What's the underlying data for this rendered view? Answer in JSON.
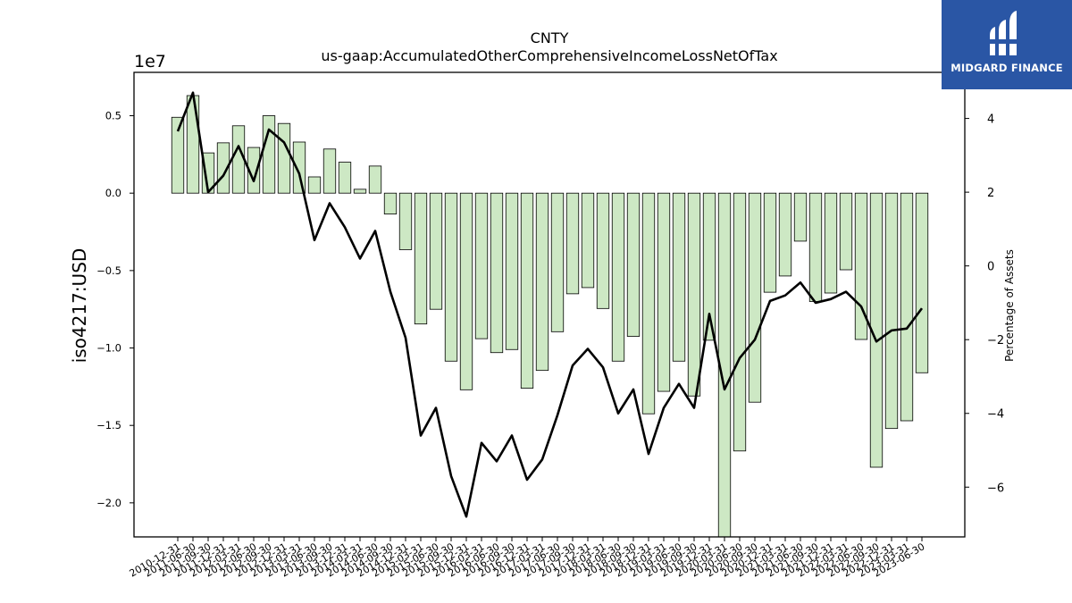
{
  "chart_data": {
    "type": "bar",
    "title": "CNTY",
    "subtitle": "us-gaap:AccumulatedOtherComprehensiveIncomeLossNetOfTax",
    "ylabel": "iso4217:USD",
    "y_scale_label": "1e7",
    "y2label": "Percentage of Assets",
    "ylim": [
      -22200000.0,
      7800000.0
    ],
    "y2lim": [
      -7.35,
      5.25
    ],
    "yticks": [
      -20000000.0,
      -15000000.0,
      -10000000.0,
      -5000000.0,
      0,
      5000000.0
    ],
    "ytick_labels": [
      "−2.0",
      "−1.5",
      "−1.0",
      "−0.5",
      "0.0",
      "0.5"
    ],
    "y2ticks": [
      -6,
      -4,
      -2,
      0,
      2,
      4
    ],
    "y2tick_labels": [
      "−6",
      "−4",
      "−2",
      "0",
      "2",
      "4"
    ],
    "categories": [
      "2010-12-31",
      "2011-06-30",
      "2011-09-30",
      "2011-12-31",
      "2012-03-31",
      "2012-06-30",
      "2012-09-30",
      "2012-12-31",
      "2013-03-31",
      "2013-06-30",
      "2013-09-30",
      "2013-12-31",
      "2014-03-31",
      "2014-06-30",
      "2014-09-30",
      "2014-12-31",
      "2015-03-31",
      "2015-06-30",
      "2015-09-30",
      "2015-12-31",
      "2016-03-31",
      "2016-06-30",
      "2016-09-30",
      "2016-12-31",
      "2017-03-31",
      "2017-06-30",
      "2017-09-30",
      "2017-12-31",
      "2018-03-31",
      "2018-06-30",
      "2018-09-30",
      "2018-12-31",
      "2019-03-31",
      "2019-06-30",
      "2019-09-30",
      "2019-12-31",
      "2020-03-31",
      "2020-06-30",
      "2020-09-30",
      "2020-12-31",
      "2021-03-31",
      "2021-06-30",
      "2021-09-30",
      "2021-12-31",
      "2022-03-31",
      "2022-06-30",
      "2022-09-30",
      "2022-12-31",
      "2023-03-31",
      "2023-06-30"
    ],
    "series": [
      {
        "type": "bar",
        "color": "#cde8c4",
        "edge": "#000000",
        "values": [
          4900000,
          6300000,
          2600000,
          3250000,
          4350000,
          2950000,
          5000000,
          4500000,
          3300000,
          1050000,
          2850000,
          2000000,
          250000,
          1750000,
          -1350000,
          -3650000,
          -8450000,
          -7500000,
          -10850000,
          -12700000,
          -9400000,
          -10300000,
          -10100000,
          -12600000,
          -11450000,
          -8950000,
          -6500000,
          -6100000,
          -7450000,
          -10850000,
          -9250000,
          -14250000,
          -12800000,
          -10850000,
          -13100000,
          -9500000,
          -22200000,
          -16650000,
          -13500000,
          -6400000,
          -5350000,
          -3100000,
          -7000000,
          -6450000,
          -4950000,
          -9450000,
          -17700000,
          -15200000,
          -14700000,
          -11600000
        ]
      },
      {
        "type": "line",
        "axis": "y2",
        "color": "#000000",
        "values": [
          3.65,
          4.7,
          2.0,
          2.45,
          3.25,
          2.3,
          3.7,
          3.35,
          2.5,
          0.7,
          1.7,
          1.05,
          0.2,
          0.95,
          -0.7,
          -1.95,
          -4.6,
          -3.85,
          -5.7,
          -6.8,
          -4.8,
          -5.3,
          -4.6,
          -5.8,
          -5.25,
          -4.05,
          -2.7,
          -2.25,
          -2.75,
          -4.0,
          -3.35,
          -5.1,
          -3.85,
          -3.2,
          -3.85,
          -1.3,
          -3.35,
          -2.5,
          -2.0,
          -0.95,
          -0.8,
          -0.45,
          -1.0,
          -0.9,
          -0.7,
          -1.1,
          -2.05,
          -1.75,
          -1.7,
          -1.15
        ]
      }
    ],
    "grid": false
  },
  "logo": {
    "text": "MIDGARD FINANCE",
    "background": "#2a56a5"
  }
}
